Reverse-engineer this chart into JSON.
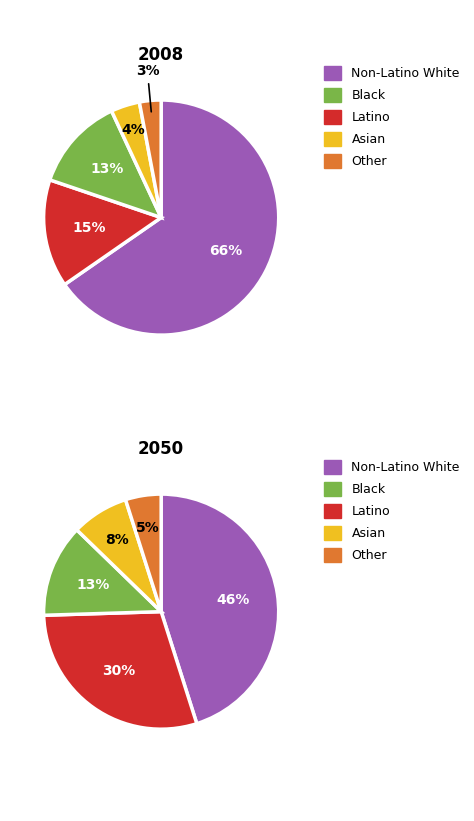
{
  "chart2008": {
    "title": "2008",
    "labels": [
      "Non-Latino White",
      "Latino",
      "Black",
      "Asian",
      "Other"
    ],
    "values": [
      66,
      15,
      13,
      4,
      3
    ],
    "colors": [
      "#9b59b6",
      "#d42b2b",
      "#7ab648",
      "#f0c020",
      "#e07830"
    ],
    "pct_labels": [
      "66%",
      "15%",
      "13%",
      "4%",
      "3%"
    ],
    "startangle": 90,
    "counterclock": false
  },
  "chart2050": {
    "title": "2050",
    "labels": [
      "Non-Latino White",
      "Latino",
      "Black",
      "Asian",
      "Other"
    ],
    "values": [
      46,
      30,
      13,
      8,
      5
    ],
    "colors": [
      "#9b59b6",
      "#d42b2b",
      "#7ab648",
      "#f0c020",
      "#e07830"
    ],
    "pct_labels": [
      "46%",
      "30%",
      "13%",
      "8%",
      "5%"
    ],
    "startangle": 90,
    "counterclock": false
  },
  "legend_labels": [
    "Non-Latino White",
    "Black",
    "Latino",
    "Asian",
    "Other"
  ],
  "legend_colors": [
    "#9b59b6",
    "#7ab648",
    "#d42b2b",
    "#f0c020",
    "#e07830"
  ],
  "background_color": "#ffffff",
  "title_fontsize": 12,
  "pct_fontsize": 10,
  "legend_fontsize": 9
}
